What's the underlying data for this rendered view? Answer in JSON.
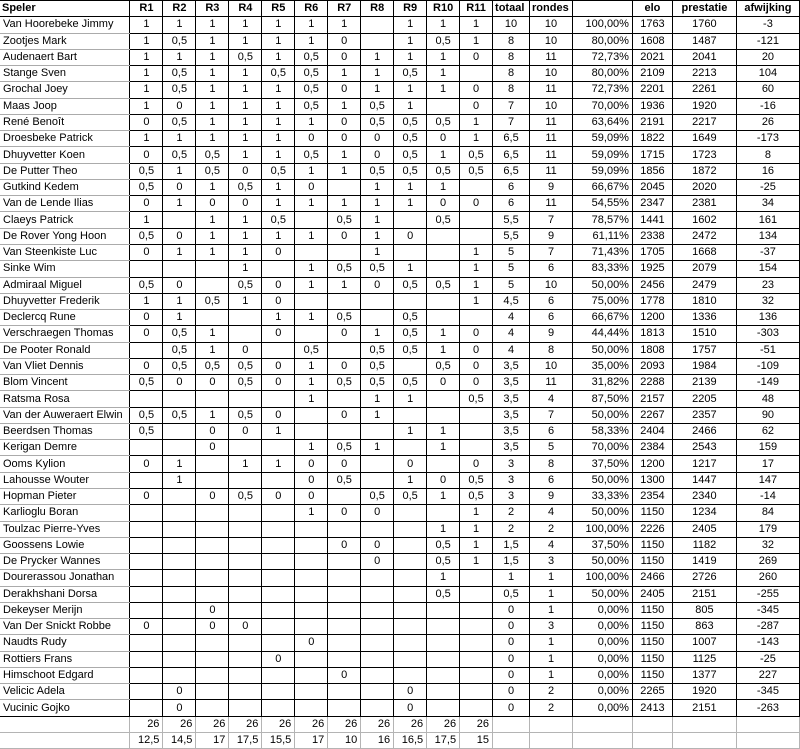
{
  "header": {
    "columns": [
      "Speler",
      "R1",
      "R2",
      "R3",
      "R4",
      "R5",
      "R6",
      "R7",
      "R8",
      "R9",
      "R10",
      "R11",
      "totaal",
      "rondes",
      "",
      "elo",
      "prestatie",
      "afwijking"
    ]
  },
  "players": [
    {
      "name": "Van Hoorebeke Jimmy",
      "results": [
        "1",
        "1",
        "1",
        "1",
        "1",
        "1",
        "1",
        "",
        "1",
        "1",
        "1"
      ],
      "totaal": "10",
      "rondes": "10",
      "pct": "100,00%",
      "elo": "1763",
      "prestatie": "1760",
      "afwijking": "-3"
    },
    {
      "name": "Zootjes Mark",
      "results": [
        "1",
        "0,5",
        "1",
        "1",
        "1",
        "1",
        "0",
        "",
        "1",
        "0,5",
        "1"
      ],
      "totaal": "8",
      "rondes": "10",
      "pct": "80,00%",
      "elo": "1608",
      "prestatie": "1487",
      "afwijking": "-121"
    },
    {
      "name": "Audenaert Bart",
      "results": [
        "1",
        "1",
        "1",
        "0,5",
        "1",
        "0,5",
        "0",
        "1",
        "1",
        "1",
        "0"
      ],
      "totaal": "8",
      "rondes": "11",
      "pct": "72,73%",
      "elo": "2021",
      "prestatie": "2041",
      "afwijking": "20"
    },
    {
      "name": "Stange Sven",
      "results": [
        "1",
        "0,5",
        "1",
        "1",
        "0,5",
        "0,5",
        "1",
        "1",
        "0,5",
        "1",
        ""
      ],
      "totaal": "8",
      "rondes": "10",
      "pct": "80,00%",
      "elo": "2109",
      "prestatie": "2213",
      "afwijking": "104"
    },
    {
      "name": "Grochal Joey",
      "results": [
        "1",
        "0,5",
        "1",
        "1",
        "1",
        "0,5",
        "0",
        "1",
        "1",
        "1",
        "0"
      ],
      "totaal": "8",
      "rondes": "11",
      "pct": "72,73%",
      "elo": "2201",
      "prestatie": "2261",
      "afwijking": "60"
    },
    {
      "name": "Maas Joop",
      "results": [
        "1",
        "0",
        "1",
        "1",
        "1",
        "0,5",
        "1",
        "0,5",
        "1",
        "",
        "0"
      ],
      "totaal": "7",
      "rondes": "10",
      "pct": "70,00%",
      "elo": "1936",
      "prestatie": "1920",
      "afwijking": "-16"
    },
    {
      "name": "René Benoît",
      "results": [
        "0",
        "0,5",
        "1",
        "1",
        "1",
        "1",
        "0",
        "0,5",
        "0,5",
        "0,5",
        "1"
      ],
      "totaal": "7",
      "rondes": "11",
      "pct": "63,64%",
      "elo": "2191",
      "prestatie": "2217",
      "afwijking": "26"
    },
    {
      "name": "Droesbeke Patrick",
      "results": [
        "1",
        "1",
        "1",
        "1",
        "1",
        "0",
        "0",
        "0",
        "0,5",
        "0",
        "1"
      ],
      "totaal": "6,5",
      "rondes": "11",
      "pct": "59,09%",
      "elo": "1822",
      "prestatie": "1649",
      "afwijking": "-173"
    },
    {
      "name": "Dhuyvetter Koen",
      "results": [
        "0",
        "0,5",
        "0,5",
        "1",
        "1",
        "0,5",
        "1",
        "0",
        "0,5",
        "1",
        "0,5"
      ],
      "totaal": "6,5",
      "rondes": "11",
      "pct": "59,09%",
      "elo": "1715",
      "prestatie": "1723",
      "afwijking": "8"
    },
    {
      "name": "De Putter Theo",
      "results": [
        "0,5",
        "1",
        "0,5",
        "0",
        "0,5",
        "1",
        "1",
        "0,5",
        "0,5",
        "0,5",
        "0,5"
      ],
      "totaal": "6,5",
      "rondes": "11",
      "pct": "59,09%",
      "elo": "1856",
      "prestatie": "1872",
      "afwijking": "16"
    },
    {
      "name": "Gutkind Kedem",
      "results": [
        "0,5",
        "0",
        "1",
        "0,5",
        "1",
        "0",
        "",
        "1",
        "1",
        "1",
        ""
      ],
      "totaal": "6",
      "rondes": "9",
      "pct": "66,67%",
      "elo": "2045",
      "prestatie": "2020",
      "afwijking": "-25"
    },
    {
      "name": "Van de Lende Ilias",
      "results": [
        "0",
        "1",
        "0",
        "0",
        "1",
        "1",
        "1",
        "1",
        "1",
        "0",
        "0"
      ],
      "totaal": "6",
      "rondes": "11",
      "pct": "54,55%",
      "elo": "2347",
      "prestatie": "2381",
      "afwijking": "34"
    },
    {
      "name": "Claeys Patrick",
      "results": [
        "1",
        "",
        "1",
        "1",
        "0,5",
        "",
        "0,5",
        "1",
        "",
        "0,5",
        ""
      ],
      "totaal": "5,5",
      "rondes": "7",
      "pct": "78,57%",
      "elo": "1441",
      "prestatie": "1602",
      "afwijking": "161"
    },
    {
      "name": "De Rover Yong Hoon",
      "results": [
        "0,5",
        "0",
        "1",
        "1",
        "1",
        "1",
        "0",
        "1",
        "0",
        "",
        ""
      ],
      "totaal": "5,5",
      "rondes": "9",
      "pct": "61,11%",
      "elo": "2338",
      "prestatie": "2472",
      "afwijking": "134"
    },
    {
      "name": "Van Steenkiste Luc",
      "results": [
        "0",
        "1",
        "1",
        "1",
        "0",
        "",
        "",
        "1",
        "",
        "",
        "1"
      ],
      "totaal": "5",
      "rondes": "7",
      "pct": "71,43%",
      "elo": "1705",
      "prestatie": "1668",
      "afwijking": "-37"
    },
    {
      "name": "Sinke Wim",
      "results": [
        "",
        "",
        "",
        "1",
        "",
        "1",
        "0,5",
        "0,5",
        "1",
        "",
        "1"
      ],
      "totaal": "5",
      "rondes": "6",
      "pct": "83,33%",
      "elo": "1925",
      "prestatie": "2079",
      "afwijking": "154"
    },
    {
      "name": "Admiraal Miguel",
      "results": [
        "0,5",
        "0",
        "",
        "0,5",
        "0",
        "1",
        "1",
        "0",
        "0,5",
        "0,5",
        "1"
      ],
      "totaal": "5",
      "rondes": "10",
      "pct": "50,00%",
      "elo": "2456",
      "prestatie": "2479",
      "afwijking": "23"
    },
    {
      "name": "Dhuyvetter Frederik",
      "results": [
        "1",
        "1",
        "0,5",
        "1",
        "0",
        "",
        "",
        "",
        "",
        "",
        "1"
      ],
      "totaal": "4,5",
      "rondes": "6",
      "pct": "75,00%",
      "elo": "1778",
      "prestatie": "1810",
      "afwijking": "32"
    },
    {
      "name": "Declercq Rune",
      "results": [
        "0",
        "1",
        "",
        "",
        "1",
        "1",
        "0,5",
        "",
        "0,5",
        "",
        ""
      ],
      "totaal": "4",
      "rondes": "6",
      "pct": "66,67%",
      "elo": "1200",
      "prestatie": "1336",
      "afwijking": "136"
    },
    {
      "name": "Verschraegen Thomas",
      "results": [
        "0",
        "0,5",
        "1",
        "",
        "0",
        "",
        "0",
        "1",
        "0,5",
        "1",
        "0"
      ],
      "totaal": "4",
      "rondes": "9",
      "pct": "44,44%",
      "elo": "1813",
      "prestatie": "1510",
      "afwijking": "-303"
    },
    {
      "name": "De Pooter Ronald",
      "results": [
        "",
        "0,5",
        "1",
        "0",
        "",
        "0,5",
        "",
        "0,5",
        "0,5",
        "1",
        "0"
      ],
      "totaal": "4",
      "rondes": "8",
      "pct": "50,00%",
      "elo": "1808",
      "prestatie": "1757",
      "afwijking": "-51"
    },
    {
      "name": "Van Vliet Dennis",
      "results": [
        "0",
        "0,5",
        "0,5",
        "0,5",
        "0",
        "1",
        "0",
        "0,5",
        "",
        "0,5",
        "0"
      ],
      "totaal": "3,5",
      "rondes": "10",
      "pct": "35,00%",
      "elo": "2093",
      "prestatie": "1984",
      "afwijking": "-109"
    },
    {
      "name": "Blom Vincent",
      "results": [
        "0,5",
        "0",
        "0",
        "0,5",
        "0",
        "1",
        "0,5",
        "0,5",
        "0,5",
        "0",
        "0"
      ],
      "totaal": "3,5",
      "rondes": "11",
      "pct": "31,82%",
      "elo": "2288",
      "prestatie": "2139",
      "afwijking": "-149"
    },
    {
      "name": "Ratsma Rosa",
      "results": [
        "",
        "",
        "",
        "",
        "",
        "1",
        "",
        "1",
        "1",
        "",
        "0,5"
      ],
      "totaal": "3,5",
      "rondes": "4",
      "pct": "87,50%",
      "elo": "2157",
      "prestatie": "2205",
      "afwijking": "48"
    },
    {
      "name": "Van der Auweraert Elwin",
      "results": [
        "0,5",
        "0,5",
        "1",
        "0,5",
        "0",
        "",
        "0",
        "1",
        "",
        "",
        ""
      ],
      "totaal": "3,5",
      "rondes": "7",
      "pct": "50,00%",
      "elo": "2267",
      "prestatie": "2357",
      "afwijking": "90"
    },
    {
      "name": "Beerdsen Thomas",
      "results": [
        "0,5",
        "",
        "0",
        "0",
        "1",
        "",
        "",
        "",
        "1",
        "1",
        ""
      ],
      "totaal": "3,5",
      "rondes": "6",
      "pct": "58,33%",
      "elo": "2404",
      "prestatie": "2466",
      "afwijking": "62"
    },
    {
      "name": "Kerigan Demre",
      "results": [
        "",
        "",
        "0",
        "",
        "",
        "1",
        "0,5",
        "1",
        "",
        "1",
        ""
      ],
      "totaal": "3,5",
      "rondes": "5",
      "pct": "70,00%",
      "elo": "2384",
      "prestatie": "2543",
      "afwijking": "159"
    },
    {
      "name": "Ooms Kylion",
      "results": [
        "0",
        "1",
        "",
        "1",
        "1",
        "0",
        "0",
        "",
        "0",
        "",
        "0"
      ],
      "totaal": "3",
      "rondes": "8",
      "pct": "37,50%",
      "elo": "1200",
      "prestatie": "1217",
      "afwijking": "17"
    },
    {
      "name": "Lahousse Wouter",
      "results": [
        "",
        "1",
        "",
        "",
        "",
        "0",
        "0,5",
        "",
        "1",
        "0",
        "0,5"
      ],
      "totaal": "3",
      "rondes": "6",
      "pct": "50,00%",
      "elo": "1300",
      "prestatie": "1447",
      "afwijking": "147"
    },
    {
      "name": "Hopman Pieter",
      "results": [
        "0",
        "",
        "0",
        "0,5",
        "0",
        "0",
        "",
        "0,5",
        "0,5",
        "1",
        "0,5"
      ],
      "totaal": "3",
      "rondes": "9",
      "pct": "33,33%",
      "elo": "2354",
      "prestatie": "2340",
      "afwijking": "-14"
    },
    {
      "name": "Karlioglu Boran",
      "results": [
        "",
        "",
        "",
        "",
        "",
        "1",
        "0",
        "0",
        "",
        "",
        "1"
      ],
      "totaal": "2",
      "rondes": "4",
      "pct": "50,00%",
      "elo": "1150",
      "prestatie": "1234",
      "afwijking": "84"
    },
    {
      "name": "Toulzac Pierre-Yves",
      "results": [
        "",
        "",
        "",
        "",
        "",
        "",
        "",
        "",
        "",
        "1",
        "1"
      ],
      "totaal": "2",
      "rondes": "2",
      "pct": "100,00%",
      "elo": "2226",
      "prestatie": "2405",
      "afwijking": "179"
    },
    {
      "name": "Goossens Lowie",
      "results": [
        "",
        "",
        "",
        "",
        "",
        "",
        "0",
        "0",
        "",
        "0,5",
        "1"
      ],
      "totaal": "1,5",
      "rondes": "4",
      "pct": "37,50%",
      "elo": "1150",
      "prestatie": "1182",
      "afwijking": "32"
    },
    {
      "name": "De Prycker Wannes",
      "results": [
        "",
        "",
        "",
        "",
        "",
        "",
        "",
        "0",
        "",
        "0,5",
        "1"
      ],
      "totaal": "1,5",
      "rondes": "3",
      "pct": "50,00%",
      "elo": "1150",
      "prestatie": "1419",
      "afwijking": "269"
    },
    {
      "name": "Dourerassou Jonathan",
      "results": [
        "",
        "",
        "",
        "",
        "",
        "",
        "",
        "",
        "",
        "1",
        ""
      ],
      "totaal": "1",
      "rondes": "1",
      "pct": "100,00%",
      "elo": "2466",
      "prestatie": "2726",
      "afwijking": "260"
    },
    {
      "name": "Derakhshani Dorsa",
      "results": [
        "",
        "",
        "",
        "",
        "",
        "",
        "",
        "",
        "",
        "0,5",
        ""
      ],
      "totaal": "0,5",
      "rondes": "1",
      "pct": "50,00%",
      "elo": "2405",
      "prestatie": "2151",
      "afwijking": "-255"
    },
    {
      "name": "Dekeyser Merijn",
      "results": [
        "",
        "",
        "0",
        "",
        "",
        "",
        "",
        "",
        "",
        "",
        ""
      ],
      "totaal": "0",
      "rondes": "1",
      "pct": "0,00%",
      "elo": "1150",
      "prestatie": "805",
      "afwijking": "-345"
    },
    {
      "name": "Van Der Snickt Robbe",
      "results": [
        "0",
        "",
        "0",
        "0",
        "",
        "",
        "",
        "",
        "",
        "",
        ""
      ],
      "totaal": "0",
      "rondes": "3",
      "pct": "0,00%",
      "elo": "1150",
      "prestatie": "863",
      "afwijking": "-287"
    },
    {
      "name": "Naudts Rudy",
      "results": [
        "",
        "",
        "",
        "",
        "",
        "0",
        "",
        "",
        "",
        "",
        ""
      ],
      "totaal": "0",
      "rondes": "1",
      "pct": "0,00%",
      "elo": "1150",
      "prestatie": "1007",
      "afwijking": "-143"
    },
    {
      "name": "Rottiers Frans",
      "results": [
        "",
        "",
        "",
        "",
        "0",
        "",
        "",
        "",
        "",
        "",
        ""
      ],
      "totaal": "0",
      "rondes": "1",
      "pct": "0,00%",
      "elo": "1150",
      "prestatie": "1125",
      "afwijking": "-25"
    },
    {
      "name": "Himschoot Edgard",
      "results": [
        "",
        "",
        "",
        "",
        "",
        "",
        "0",
        "",
        "",
        "",
        ""
      ],
      "totaal": "0",
      "rondes": "1",
      "pct": "0,00%",
      "elo": "1150",
      "prestatie": "1377",
      "afwijking": "227"
    },
    {
      "name": "Velicic Adela",
      "results": [
        "",
        "0",
        "",
        "",
        "",
        "",
        "",
        "",
        "0",
        "",
        ""
      ],
      "totaal": "0",
      "rondes": "2",
      "pct": "0,00%",
      "elo": "2265",
      "prestatie": "1920",
      "afwijking": "-345"
    },
    {
      "name": "Vucinic Gojko",
      "results": [
        "",
        "0",
        "",
        "",
        "",
        "",
        "",
        "",
        "0",
        "",
        ""
      ],
      "totaal": "0",
      "rondes": "2",
      "pct": "0,00%",
      "elo": "2413",
      "prestatie": "2151",
      "afwijking": "-263"
    }
  ],
  "summary": {
    "games_per_round": [
      "26",
      "26",
      "26",
      "26",
      "26",
      "26",
      "26",
      "26",
      "26",
      "26",
      "26"
    ],
    "points_per_round": [
      "12,5",
      "14,5",
      "17",
      "17,5",
      "15,5",
      "17",
      "10",
      "16",
      "16,5",
      "17,5",
      "15"
    ]
  }
}
